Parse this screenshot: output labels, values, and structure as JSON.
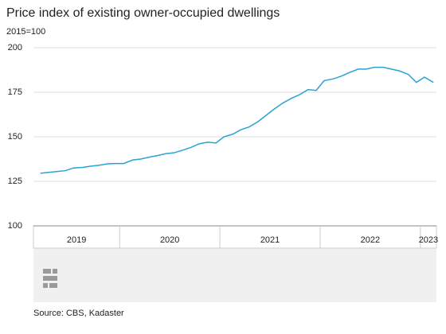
{
  "chart_data": {
    "type": "line",
    "title": "Price index of existing owner-occupied dwellings",
    "subtitle": "2015=100",
    "source": "Source: CBS, Kadaster",
    "x": [
      2019.21,
      2019.29,
      2019.38,
      2019.46,
      2019.54,
      2019.63,
      2019.71,
      2019.79,
      2019.88,
      2019.96,
      2020.04,
      2020.13,
      2020.21,
      2020.29,
      2020.38,
      2020.46,
      2020.54,
      2020.63,
      2020.71,
      2020.79,
      2020.88,
      2020.96,
      2021.04,
      2021.13,
      2021.21,
      2021.29,
      2021.38,
      2021.46,
      2021.54,
      2021.63,
      2021.71,
      2021.79,
      2021.88,
      2021.96,
      2022.04,
      2022.13,
      2022.21,
      2022.29,
      2022.38,
      2022.46,
      2022.54,
      2022.63,
      2022.71,
      2022.79,
      2022.88,
      2022.96,
      2023.04,
      2023.13
    ],
    "values": [
      129.5,
      130,
      130.5,
      131,
      132.5,
      132.8,
      133.5,
      134,
      134.8,
      135,
      135,
      137,
      137.5,
      138.5,
      139.5,
      140.5,
      141,
      142.5,
      144,
      146,
      147,
      146.5,
      150,
      151.5,
      154,
      155.5,
      158.5,
      162,
      165.5,
      169,
      171.5,
      173.5,
      176.5,
      176,
      181.5,
      182.5,
      184,
      186,
      188,
      188,
      189,
      189,
      188,
      187,
      185,
      180.5,
      183.5,
      180.5
    ],
    "color": "#29a3d3",
    "xlim": [
      2019.14,
      2023.16
    ],
    "xticks": [
      {
        "value": 2019,
        "label": "2019"
      },
      {
        "value": 2020,
        "label": "2020"
      },
      {
        "value": 2021,
        "label": "2021"
      },
      {
        "value": 2022,
        "label": "2022"
      },
      {
        "value": 2023,
        "label": "2023"
      }
    ],
    "ylim": [
      100,
      200
    ],
    "yticks": [
      100,
      125,
      150,
      175,
      200
    ],
    "grid": true
  }
}
